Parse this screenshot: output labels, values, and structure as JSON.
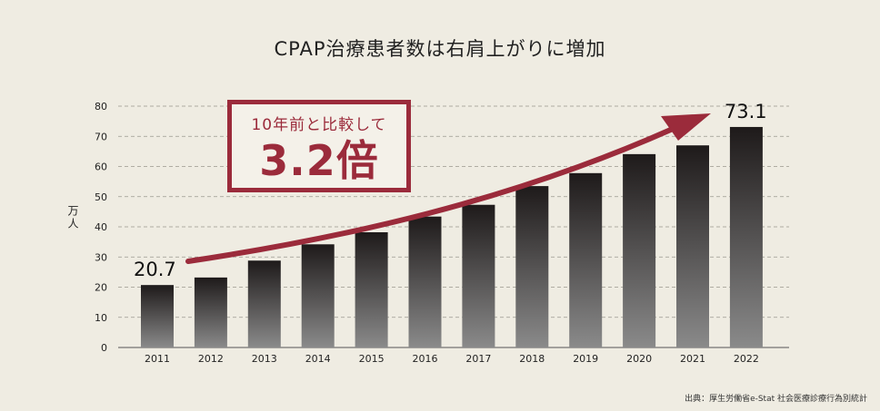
{
  "title": "CPAP治療患者数は右肩上がりに増加",
  "unit_label": "万人",
  "callout": {
    "line1": "10年前と比較して",
    "line2": "3.2倍"
  },
  "source": "出典：厚生労働省e-Stat 社会医療診療行為別統計",
  "data_labels": {
    "first": "20.7",
    "last": "73.1"
  },
  "colors": {
    "accent": "#9b2b3b",
    "background": "#efece2",
    "bar_top": "#1e1a1a",
    "bar_bottom": "#8a8a8a"
  },
  "chart_data": {
    "type": "bar",
    "categories": [
      "2011",
      "2012",
      "2013",
      "2014",
      "2015",
      "2016",
      "2017",
      "2018",
      "2019",
      "2020",
      "2021",
      "2022"
    ],
    "values": [
      20.7,
      23.2,
      28.8,
      34.2,
      38.2,
      43.4,
      47.3,
      53.5,
      57.8,
      64.1,
      67.0,
      73.1
    ],
    "ylim": [
      0,
      80
    ],
    "yticks": [
      0,
      10,
      20,
      30,
      40,
      50,
      60,
      70,
      80
    ],
    "ylabel": "万人",
    "grid": true,
    "trend_arrow": true
  }
}
